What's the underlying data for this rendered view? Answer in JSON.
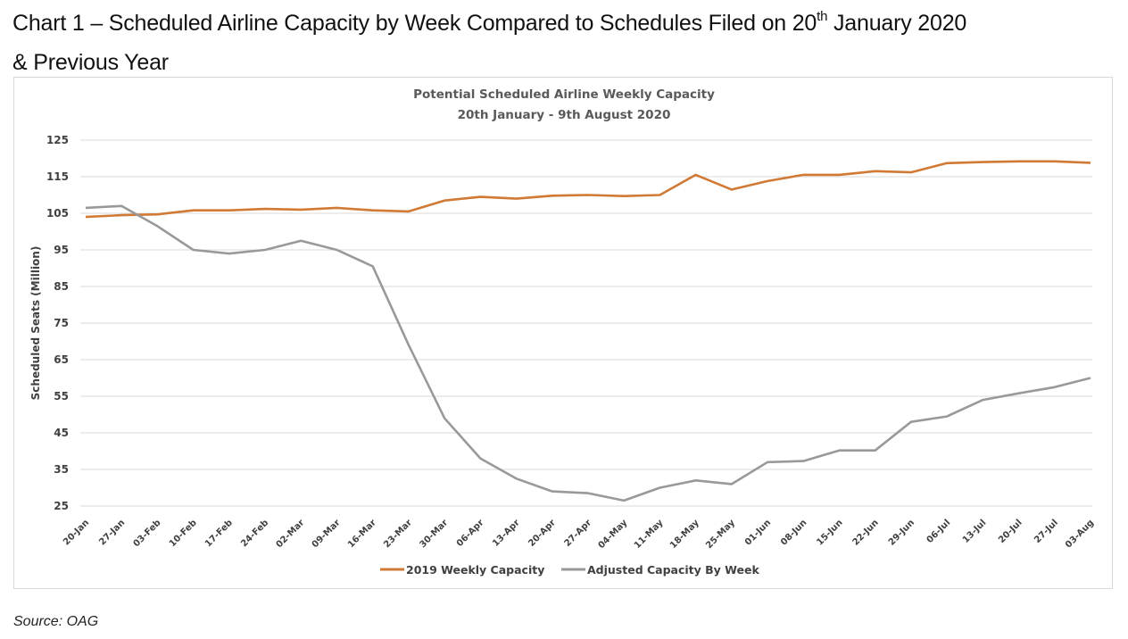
{
  "heading": {
    "prefix": "Chart 1 – Scheduled Airline Capacity by Week Compared to Schedules Filed on 20",
    "superscript": "th",
    "suffix": " January 2020",
    "line2": "& Previous Year"
  },
  "source": "Source: OAG",
  "chart_data": {
    "type": "line",
    "title": "Potential Scheduled Airline Weekly Capacity",
    "subtitle": "20th January - 9th August 2020",
    "xlabel": "",
    "ylabel": "Scheduled Seats (Million)",
    "ylim": [
      25,
      125
    ],
    "yticks": [
      25,
      35,
      45,
      55,
      65,
      75,
      85,
      95,
      105,
      115,
      125
    ],
    "grid": true,
    "legend": "bottom",
    "categories": [
      "20-Jan",
      "27-Jan",
      "03-Feb",
      "10-Feb",
      "17-Feb",
      "24-Feb",
      "02-Mar",
      "09-Mar",
      "16-Mar",
      "23-Mar",
      "30-Mar",
      "06-Apr",
      "13-Apr",
      "20-Apr",
      "27-Apr",
      "04-May",
      "11-May",
      "18-May",
      "25-May",
      "01-Jun",
      "08-Jun",
      "15-Jun",
      "22-Jun",
      "29-Jun",
      "06-Jul",
      "13-Jul",
      "20-Jul",
      "27-Jul",
      "03-Aug"
    ],
    "series": [
      {
        "name": "2019 Weekly Capacity",
        "color": "#d07a35",
        "values": [
          104.0,
          104.5,
          104.7,
          105.8,
          105.8,
          106.2,
          106.0,
          106.5,
          105.8,
          105.5,
          108.5,
          109.5,
          109.0,
          109.8,
          110.0,
          109.7,
          110.0,
          115.5,
          111.5,
          113.8,
          115.5,
          115.5,
          116.5,
          116.2,
          118.7,
          119.0,
          119.2,
          119.2,
          118.8
        ]
      },
      {
        "name": "Adjusted Capacity By Week",
        "color": "#999999",
        "values": [
          106.5,
          107.0,
          101.5,
          95.0,
          94.0,
          95.0,
          97.5,
          95.0,
          90.5,
          69.0,
          49.0,
          38.0,
          32.5,
          29.0,
          28.5,
          26.5,
          30.0,
          32.0,
          31.0,
          37.0,
          37.3,
          40.2,
          40.2,
          48.0,
          49.5,
          54.0,
          55.8,
          57.5,
          60.0
        ]
      }
    ]
  }
}
